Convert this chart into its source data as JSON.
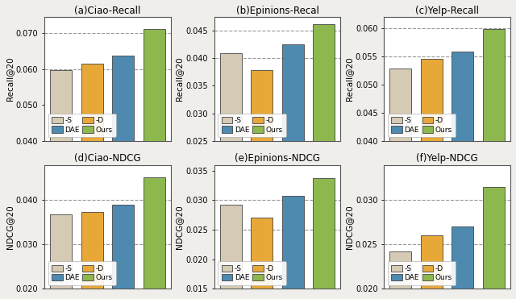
{
  "subplots": [
    {
      "title": "(a)Ciao-Recall",
      "ylabel": "Recall@20",
      "values": [
        0.0597,
        0.0614,
        0.0638,
        0.0712
      ],
      "ylim": [
        0.04,
        0.0745
      ],
      "yticks": [
        0.04,
        0.05,
        0.06,
        0.07
      ],
      "dashed_lines": [
        0.06,
        0.07
      ]
    },
    {
      "title": "(b)Epinions-Recal",
      "ylabel": "Recall@20",
      "values": [
        0.0409,
        0.0378,
        0.0425,
        0.0462
      ],
      "ylim": [
        0.025,
        0.0475
      ],
      "yticks": [
        0.025,
        0.03,
        0.035,
        0.04,
        0.045
      ],
      "dashed_lines": [
        0.04,
        0.045
      ]
    },
    {
      "title": "(c)Yelp-Recall",
      "ylabel": "Recall@20",
      "values": [
        0.0528,
        0.0545,
        0.0558,
        0.0598
      ],
      "ylim": [
        0.04,
        0.062
      ],
      "yticks": [
        0.04,
        0.045,
        0.05,
        0.055,
        0.06
      ],
      "dashed_lines": [
        0.055,
        0.06
      ]
    },
    {
      "title": "(d)Ciao-NDCG",
      "ylabel": "NDCG@20",
      "values": [
        0.0368,
        0.0374,
        0.039,
        0.0452
      ],
      "ylim": [
        0.02,
        0.048
      ],
      "yticks": [
        0.02,
        0.03,
        0.04
      ],
      "dashed_lines": [
        0.03,
        0.04
      ]
    },
    {
      "title": "(e)Epinions-NDCG",
      "ylabel": "NDCG@20",
      "values": [
        0.0292,
        0.027,
        0.0308,
        0.0338
      ],
      "ylim": [
        0.015,
        0.036
      ],
      "yticks": [
        0.015,
        0.02,
        0.025,
        0.03,
        0.035
      ],
      "dashed_lines": [
        0.025,
        0.03
      ]
    },
    {
      "title": "(f)Yelp-NDCG",
      "ylabel": "NDCG@20",
      "values": [
        0.0242,
        0.026,
        0.027,
        0.0315
      ],
      "ylim": [
        0.02,
        0.034
      ],
      "yticks": [
        0.02,
        0.025,
        0.03
      ],
      "dashed_lines": [
        0.025,
        0.03
      ]
    }
  ],
  "bar_colors": [
    "#d5cab4",
    "#e8a838",
    "#4e8ab0",
    "#8db84e"
  ],
  "bar_labels": [
    "-S",
    "-D",
    "DAE",
    "Ours"
  ],
  "bar_edgecolor": "#444444",
  "fig_facecolor": "#f0eeea",
  "ax_facecolor": "#ffffff"
}
